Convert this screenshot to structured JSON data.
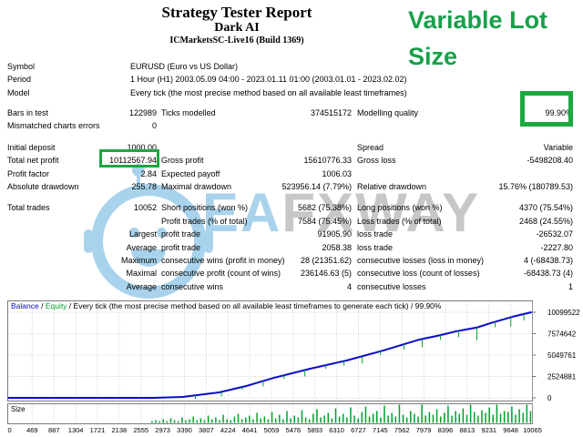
{
  "colors": {
    "accent_green": "#18A04A",
    "box_green": "#1CA93E",
    "watermark_blue": "#A9D3EC",
    "watermark_gray": "#C7C7C9",
    "balance_blue": "#0B0BC8",
    "equity_green": "#00A12E",
    "grid_gray": "#C9C9C9",
    "border_gray": "#7A7A7A"
  },
  "title": {
    "report": "Strategy Tester Report",
    "ea_name": "Dark AI",
    "server": "ICMarketsSC-Live16 (Build 1369)"
  },
  "overlay": {
    "text": "Variable Lot\nSize"
  },
  "watermark": {
    "brand_blue": "EA",
    "brand_gray": "FXWAY"
  },
  "info": {
    "rows": [
      {
        "label": "Symbol",
        "value": "EURUSD (Euro vs US Dollar)"
      },
      {
        "label": "Period",
        "value": "1 Hour (H1) 2003.05.09 04:00 - 2023.01.11 01:00 (2003.01.01 - 2023.02.02)"
      },
      {
        "label": "Model",
        "value": "Every tick (the most precise method based on all available least timeframes)"
      }
    ]
  },
  "stats": {
    "rows": [
      {
        "c1l": "Bars in test",
        "c1v": "122989",
        "c2l": "Ticks modelled",
        "c2v": "374515172",
        "c3l": "Modelling quality",
        "c3v": "99.90%",
        "c3v_boxed": true
      },
      {
        "c1l": "Mismatched charts errors",
        "c1v": "0"
      },
      {
        "spacer": true
      },
      {
        "c1l": "Initial deposit",
        "c1v": "1000.00",
        "c3l": "Spread",
        "c3v": "Variable"
      },
      {
        "c1l": "Total net profit",
        "c1v": "10112567.94",
        "c2l": "Gross profit",
        "c2v": "15610776.33",
        "c3l": "Gross loss",
        "c3v": "-5498208.40"
      },
      {
        "c1l": "Profit factor",
        "c1v": "2.84",
        "c2l": "Expected payoff",
        "c2v": "1006.03"
      },
      {
        "c1l": "Absolute drawdown",
        "c1v": "255.78",
        "c2l": "Maximal drawdown",
        "c2v": "523956.14 (7.79%)",
        "c3l": "Relative drawdown",
        "c3v": "15.76% (180789.53)"
      },
      {
        "spacer": true
      },
      {
        "c1l": "Total trades",
        "c1v": "10052",
        "c2l": "Short positions (won %)",
        "c2v": "5682 (75.38%)",
        "c3l": "Long positions (won %)",
        "c3v": "4370 (75.54%)"
      },
      {
        "c2l": "Profit trades (% of total)",
        "c2v": "7584 (75.45%)",
        "c3l": "Loss trades (% of total)",
        "c3v": "2468 (24.55%)"
      },
      {
        "c1v": "Largest",
        "c2l": "profit trade",
        "c2v": "91905.90",
        "c3l": "loss trade",
        "c3v": "-26532.07"
      },
      {
        "c1v": "Average",
        "c2l": "profit trade",
        "c2v": "2058.38",
        "c3l": "loss trade",
        "c3v": "-2227.80"
      },
      {
        "c1v": "Maximum",
        "c2l": "consecutive wins (profit in money)",
        "c2v": "28 (21351.62)",
        "c3l": "consecutive losses (loss in money)",
        "c3v": "4 (-68438.73)"
      },
      {
        "c1v": "Maximal",
        "c2l": "consecutive profit (count of wins)",
        "c2v": "236146.63 (5)",
        "c3l": "consecutive loss (count of losses)",
        "c3v": "-68438.73 (4)"
      },
      {
        "c1v": "Average",
        "c2l": "consecutive wins",
        "c2v": "4",
        "c3l": "consecutive losses",
        "c3v": "1"
      }
    ]
  },
  "chart_data": {
    "type": "line",
    "legend": {
      "balance_label": "Balance",
      "equity_label": "Equity",
      "sep": " / ",
      "desc": "Every tick (the most precise method based on all available least timeframes to generate each tick) / 99.90%"
    },
    "xlim": [
      0,
      10065
    ],
    "ylim": [
      0,
      10099522
    ],
    "xticks": [
      0,
      469,
      887,
      1304,
      1721,
      2138,
      2555,
      2973,
      3390,
      3807,
      4224,
      4641,
      5059,
      5476,
      5893,
      6310,
      6727,
      7145,
      7562,
      7979,
      8396,
      8813,
      9231,
      9648,
      10065
    ],
    "yticks": [
      0,
      2524881,
      5049761,
      7574642,
      10099522
    ],
    "balance": {
      "x": [
        0,
        2800,
        3355,
        4054,
        4578,
        5102,
        5801,
        6500,
        7199,
        7898,
        8300,
        8597,
        9000,
        9296,
        9700,
        10052
      ],
      "y": [
        1000,
        1000,
        107000,
        645000,
        1400000,
        2360000,
        3440000,
        4410000,
        5580000,
        6880000,
        7400000,
        7850000,
        8300000,
        8880000,
        9600000,
        10112568
      ]
    },
    "equity_dips": [
      {
        "t": 3600,
        "d": 4
      },
      {
        "t": 4100,
        "d": 5
      },
      {
        "t": 4500,
        "d": 3
      },
      {
        "t": 4900,
        "d": 6
      },
      {
        "t": 5300,
        "d": 4
      },
      {
        "t": 5700,
        "d": 7
      },
      {
        "t": 6100,
        "d": 4
      },
      {
        "t": 6450,
        "d": 5
      },
      {
        "t": 6800,
        "d": 8
      },
      {
        "t": 7150,
        "d": 4
      },
      {
        "t": 7600,
        "d": 6
      },
      {
        "t": 7950,
        "d": 9
      },
      {
        "t": 8300,
        "d": 5
      },
      {
        "t": 8650,
        "d": 7
      },
      {
        "t": 9000,
        "d": 14
      },
      {
        "t": 9350,
        "d": 6
      },
      {
        "t": 9650,
        "d": 10
      },
      {
        "t": 9900,
        "d": 7
      }
    ],
    "size_panel": {
      "label": "Size",
      "bars": [
        0,
        0,
        0,
        0,
        0,
        0,
        0,
        0,
        0,
        0,
        0,
        0,
        0,
        0,
        0,
        0,
        0,
        0,
        0,
        0,
        0,
        0,
        0,
        0,
        0,
        0,
        0,
        0,
        0,
        0,
        0,
        0,
        0,
        0,
        0,
        0,
        0,
        0,
        2,
        3,
        2,
        4,
        2,
        5,
        3,
        2,
        6,
        3,
        4,
        7,
        3,
        5,
        3,
        8,
        4,
        6,
        3,
        9,
        4,
        3,
        7,
        10,
        4,
        6,
        8,
        4,
        11,
        5,
        7,
        4,
        12,
        5,
        9,
        4,
        13,
        5,
        8,
        6,
        14,
        6,
        4,
        10,
        15,
        6,
        8,
        11,
        5,
        16,
        7,
        10,
        6,
        17,
        8,
        5,
        12,
        18,
        7,
        10,
        13,
        6,
        19,
        8,
        11,
        7,
        20,
        9,
        6,
        13,
        10,
        7,
        21,
        8,
        12,
        9,
        15,
        7,
        11,
        19,
        8,
        13,
        10,
        16,
        9,
        20,
        12,
        8,
        14,
        11,
        17,
        9,
        22,
        10,
        13,
        12,
        18,
        9,
        15,
        11,
        20,
        13
      ]
    }
  }
}
